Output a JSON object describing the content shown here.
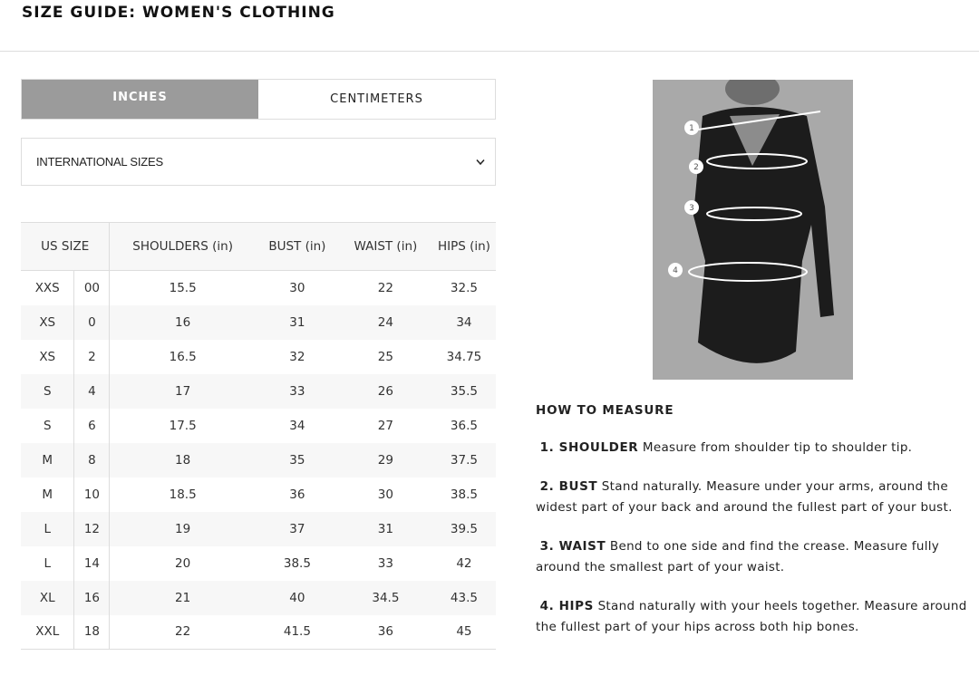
{
  "title": "SIZE GUIDE: WOMEN'S CLOTHING",
  "unit_tabs": [
    {
      "label": "INCHES",
      "active": true
    },
    {
      "label": "CENTIMETERS",
      "active": false
    }
  ],
  "size_select": {
    "value": "INTERNATIONAL SIZES",
    "icon": "chevron-down-icon"
  },
  "table": {
    "headers": [
      "US SIZE",
      "SHOULDERS (in)",
      "BUST (in)",
      "WAIST (in)",
      "HIPS (in)"
    ],
    "rows": [
      [
        "XXS",
        "00",
        "15.5",
        "30",
        "22",
        "32.5"
      ],
      [
        "XS",
        "0",
        "16",
        "31",
        "24",
        "34"
      ],
      [
        "XS",
        "2",
        "16.5",
        "32",
        "25",
        "34.75"
      ],
      [
        "S",
        "4",
        "17",
        "33",
        "26",
        "35.5"
      ],
      [
        "S",
        "6",
        "17.5",
        "34",
        "27",
        "36.5"
      ],
      [
        "M",
        "8",
        "18",
        "35",
        "29",
        "37.5"
      ],
      [
        "M",
        "10",
        "18.5",
        "36",
        "30",
        "38.5"
      ],
      [
        "L",
        "12",
        "19",
        "37",
        "31",
        "39.5"
      ],
      [
        "L",
        "14",
        "20",
        "38.5",
        "33",
        "42"
      ],
      [
        "XL",
        "16",
        "21",
        "40",
        "34.5",
        "43.5"
      ],
      [
        "XXL",
        "18",
        "22",
        "41.5",
        "36",
        "45"
      ]
    ]
  },
  "image": {
    "markers": [
      "1",
      "2",
      "3",
      "4"
    ]
  },
  "how_to": {
    "heading": "HOW TO MEASURE",
    "items": [
      {
        "label": "1. SHOULDER",
        "text": "Measure from shoulder tip to shoulder tip."
      },
      {
        "label": "2. BUST",
        "text": " Stand naturally. Measure under your arms, around the widest part of your back and around the fullest part of your bust."
      },
      {
        "label": "3. WAIST",
        "text": "Bend to one side and find the crease. Measure fully around the smallest part of your waist."
      },
      {
        "label": "4. HIPS",
        "text": "Stand naturally with your heels together. Measure around the fullest part of your hips across both hip bones."
      }
    ]
  }
}
